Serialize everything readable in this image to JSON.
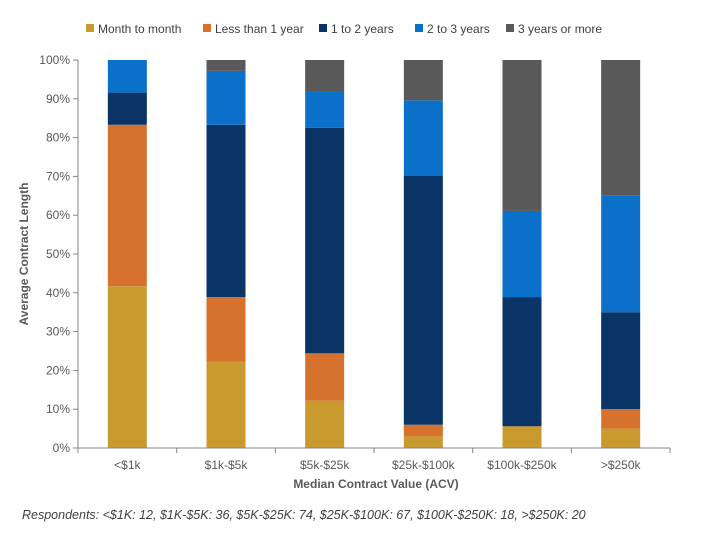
{
  "chart_data": {
    "type": "bar",
    "stacked": true,
    "normalized": true,
    "categories": [
      "<$1k",
      "$1k-$5k",
      "$5k-$25k",
      "$25k-$100k",
      "$100k-$250k",
      ">$250k"
    ],
    "series": [
      {
        "name": "Month to month",
        "color": "#C99A2E",
        "values": [
          41.7,
          22.2,
          12.2,
          3.0,
          5.6,
          5.0
        ]
      },
      {
        "name": "Less than 1 year",
        "color": "#D6722D",
        "values": [
          41.6,
          16.7,
          12.2,
          3.0,
          0.0,
          5.0
        ]
      },
      {
        "name": "1 to 2 years",
        "color": "#0B3466",
        "values": [
          8.3,
          44.4,
          58.1,
          64.2,
          33.3,
          25.0
        ]
      },
      {
        "name": "2 to 3 years",
        "color": "#0A70C9",
        "values": [
          8.4,
          13.9,
          9.5,
          19.4,
          22.2,
          30.0
        ]
      },
      {
        "name": "3 years or more",
        "color": "#595959",
        "values": [
          0.0,
          2.8,
          8.0,
          10.4,
          38.9,
          35.0
        ]
      }
    ],
    "ylim": [
      0,
      100
    ],
    "yticks": [
      "0%",
      "10%",
      "20%",
      "30%",
      "40%",
      "50%",
      "60%",
      "70%",
      "80%",
      "90%",
      "100%"
    ],
    "xlabel": "Median Contract Value (ACV)",
    "ylabel": "Average Contract Length",
    "legend_position": "top",
    "grid": false
  },
  "footnote": "Respondents: <$1K: 12, $1K-$5K: 36,  $5K-$25K: 74, $25K-$100K: 67, $100K-$250K: 18, >$250K: 20"
}
